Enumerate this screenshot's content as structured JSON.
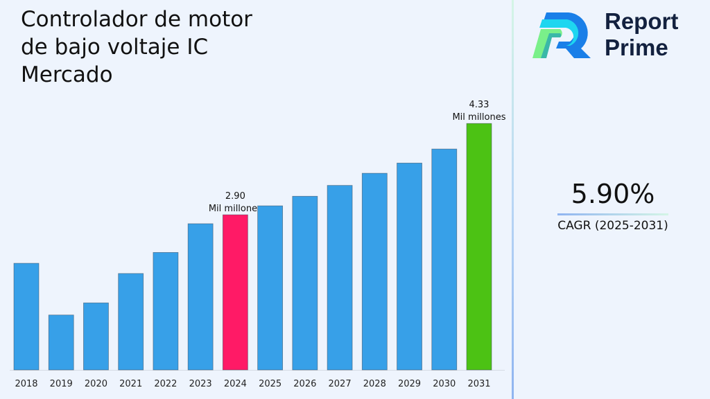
{
  "title": "Controlador de motor de bajo voltaje IC Mercado",
  "brand": {
    "name_line1": "Report",
    "name_line2": "Prime"
  },
  "cagr": {
    "value": "5.90%",
    "label": "CAGR (2025-2031)"
  },
  "colors": {
    "bar": "#37a0e8",
    "highlight_2024": "#ff1a66",
    "highlight_2031": "#4cc214",
    "background": "#eef4fd"
  },
  "chart_data": {
    "type": "bar",
    "title": "Controlador de motor de bajo voltaje IC Mercado",
    "xlabel": "",
    "ylabel": "",
    "categories": [
      "2018",
      "2019",
      "2020",
      "2021",
      "2022",
      "2023",
      "2024",
      "2025",
      "2026",
      "2027",
      "2028",
      "2029",
      "2030",
      "2031"
    ],
    "values": [
      2.14,
      1.33,
      1.52,
      1.98,
      2.31,
      2.76,
      2.9,
      3.04,
      3.19,
      3.36,
      3.55,
      3.71,
      3.93,
      4.33
    ],
    "ylim": [
      0.47,
      4.81
    ],
    "grid": false,
    "annotations": [
      {
        "category": "2024",
        "value_text": "2.90",
        "unit_text": "Mil millones"
      },
      {
        "category": "2031",
        "value_text": "4.33",
        "unit_text": "Mil millones"
      }
    ]
  }
}
